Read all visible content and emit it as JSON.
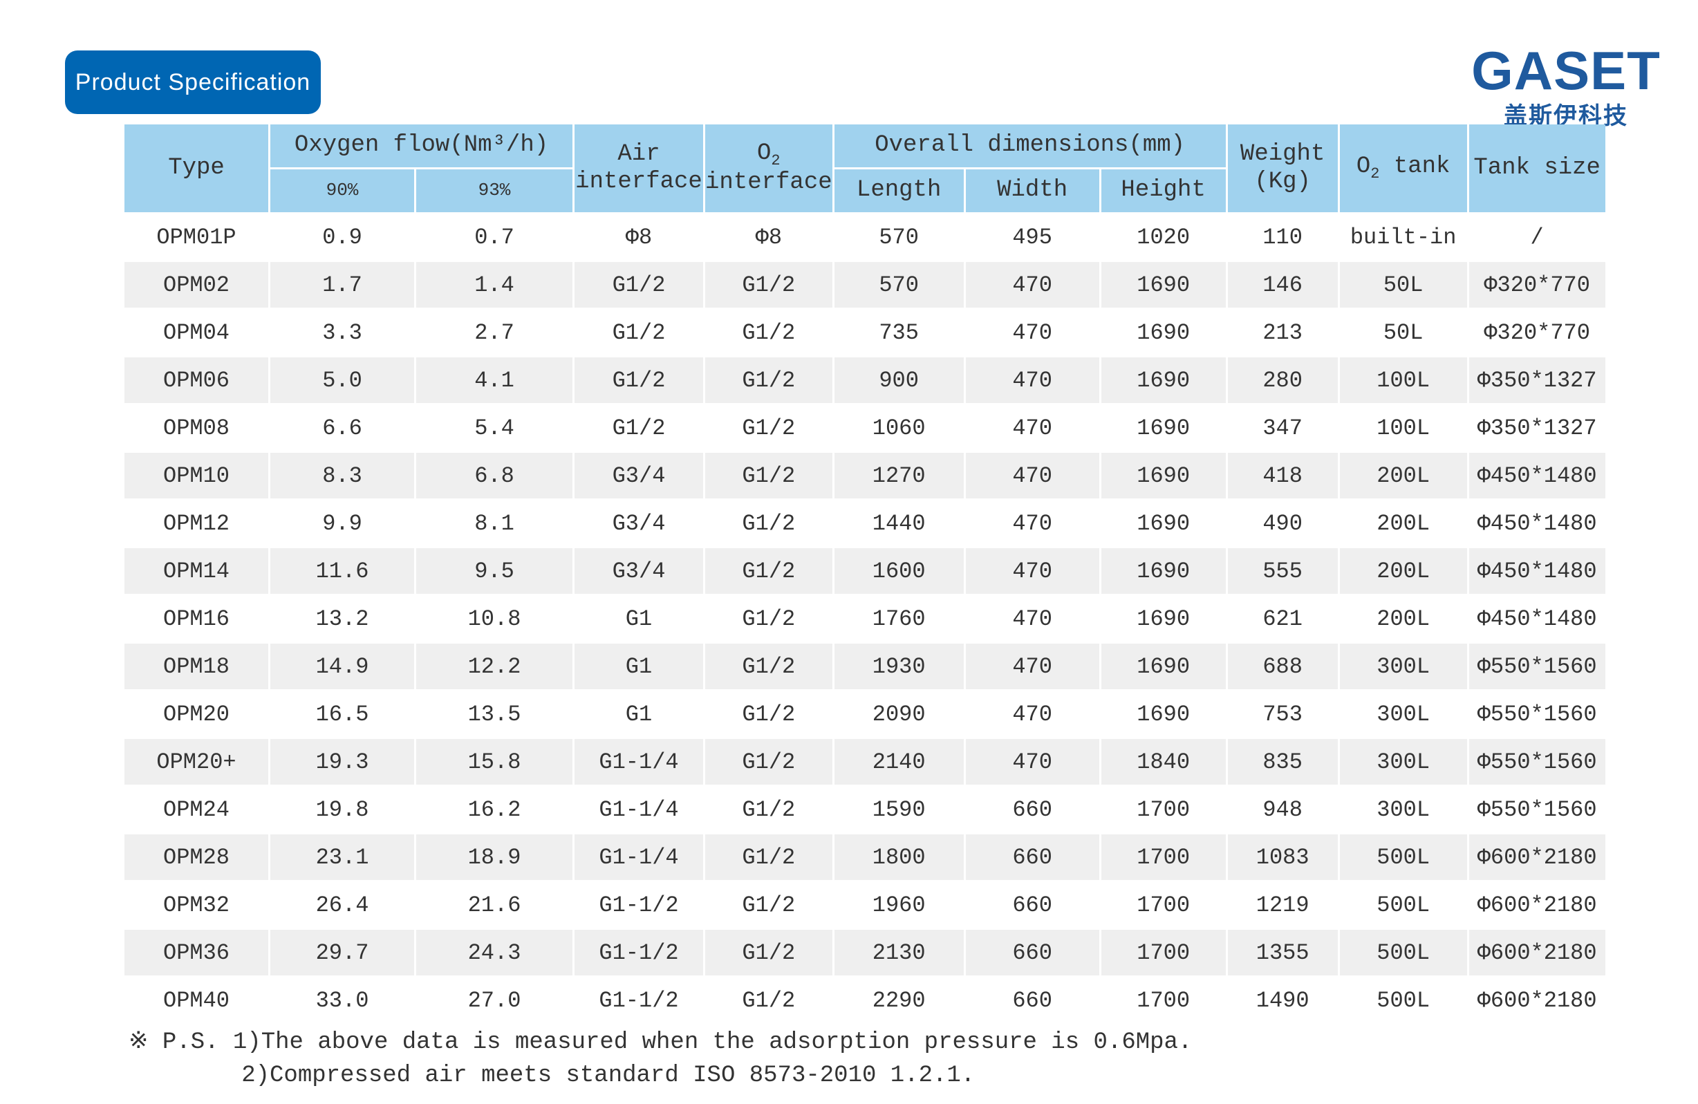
{
  "title": "Product Specification",
  "logo": {
    "name": "GASET",
    "subtitle": "盖斯伊科技",
    "color": "#1f5a9e"
  },
  "colors": {
    "badge": "#0066b3",
    "header": "#a0d2ee",
    "alt_row": "#efefef"
  },
  "headers": {
    "type": "Type",
    "oxygen_flow": "Oxygen flow(Nm³/h)",
    "purity_90": "90%",
    "purity_93": "93%",
    "air_interface_1": "Air",
    "air_interface_2": "interface",
    "o2_interface_1": "O",
    "o2_interface_sub": "2",
    "o2_interface_2": "interface",
    "overall_dimensions": "Overall dimensions(mm)",
    "length": "Length",
    "width": "Width",
    "height": "Height",
    "weight_1": "Weight",
    "weight_2": "(Kg)",
    "o2_tank_1": "O",
    "o2_tank_sub": "2",
    "o2_tank_2": " tank",
    "tank_size": "Tank size"
  },
  "rows": [
    [
      "OPM01P",
      "0.9",
      "0.7",
      "Φ8",
      "Φ8",
      "570",
      "495",
      "1020",
      "110",
      "built-in",
      "/"
    ],
    [
      "OPM02",
      "1.7",
      "1.4",
      "G1/2",
      "G1/2",
      "570",
      "470",
      "1690",
      "146",
      "50L",
      "Φ320*770"
    ],
    [
      "OPM04",
      "3.3",
      "2.7",
      "G1/2",
      "G1/2",
      "735",
      "470",
      "1690",
      "213",
      "50L",
      "Φ320*770"
    ],
    [
      "OPM06",
      "5.0",
      "4.1",
      "G1/2",
      "G1/2",
      "900",
      "470",
      "1690",
      "280",
      "100L",
      "Φ350*1327"
    ],
    [
      "OPM08",
      "6.6",
      "5.4",
      "G1/2",
      "G1/2",
      "1060",
      "470",
      "1690",
      "347",
      "100L",
      "Φ350*1327"
    ],
    [
      "OPM10",
      "8.3",
      "6.8",
      "G3/4",
      "G1/2",
      "1270",
      "470",
      "1690",
      "418",
      "200L",
      "Φ450*1480"
    ],
    [
      "OPM12",
      "9.9",
      "8.1",
      "G3/4",
      "G1/2",
      "1440",
      "470",
      "1690",
      "490",
      "200L",
      "Φ450*1480"
    ],
    [
      "OPM14",
      "11.6",
      "9.5",
      "G3/4",
      "G1/2",
      "1600",
      "470",
      "1690",
      "555",
      "200L",
      "Φ450*1480"
    ],
    [
      "OPM16",
      "13.2",
      "10.8",
      "G1",
      "G1/2",
      "1760",
      "470",
      "1690",
      "621",
      "200L",
      "Φ450*1480"
    ],
    [
      "OPM18",
      "14.9",
      "12.2",
      "G1",
      "G1/2",
      "1930",
      "470",
      "1690",
      "688",
      "300L",
      "Φ550*1560"
    ],
    [
      "OPM20",
      "16.5",
      "13.5",
      "G1",
      "G1/2",
      "2090",
      "470",
      "1690",
      "753",
      "300L",
      "Φ550*1560"
    ],
    [
      "OPM20+",
      "19.3",
      "15.8",
      "G1-1/4",
      "G1/2",
      "2140",
      "470",
      "1840",
      "835",
      "300L",
      "Φ550*1560"
    ],
    [
      "OPM24",
      "19.8",
      "16.2",
      "G1-1/4",
      "G1/2",
      "1590",
      "660",
      "1700",
      "948",
      "300L",
      "Φ550*1560"
    ],
    [
      "OPM28",
      "23.1",
      "18.9",
      "G1-1/4",
      "G1/2",
      "1800",
      "660",
      "1700",
      "1083",
      "500L",
      "Φ600*2180"
    ],
    [
      "OPM32",
      "26.4",
      "21.6",
      "G1-1/2",
      "G1/2",
      "1960",
      "660",
      "1700",
      "1219",
      "500L",
      "Φ600*2180"
    ],
    [
      "OPM36",
      "29.7",
      "24.3",
      "G1-1/2",
      "G1/2",
      "2130",
      "660",
      "1700",
      "1355",
      "500L",
      "Φ600*2180"
    ],
    [
      "OPM40",
      "33.0",
      "27.0",
      "G1-1/2",
      "G1/2",
      "2290",
      "660",
      "1700",
      "1490",
      "500L",
      "Φ600*2180"
    ]
  ],
  "notes": [
    "※ P.S. 1)The above data is measured when the adsorption pressure is 0.6Mpa.",
    "        2)Compressed air meets standard ISO 8573-2010 1.2.1."
  ]
}
